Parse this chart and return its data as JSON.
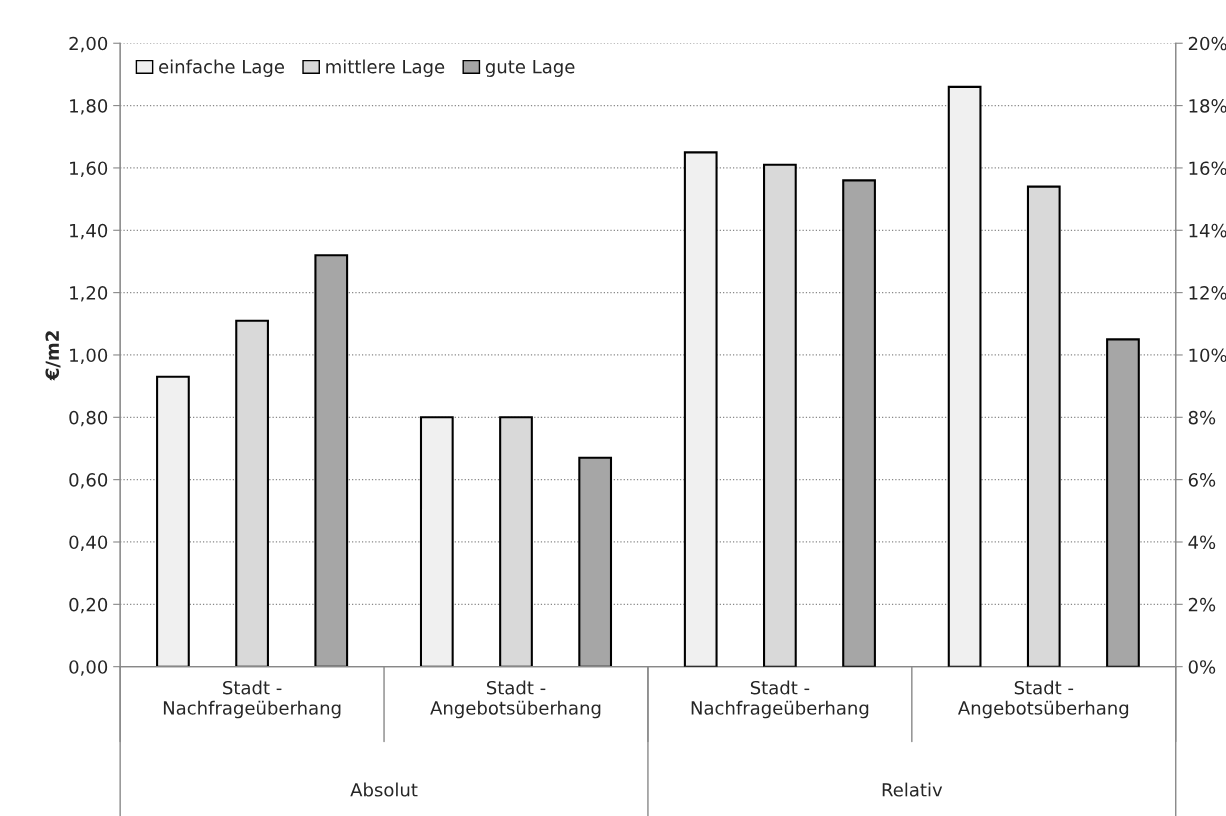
{
  "chart_data": {
    "type": "bar",
    "ylabel": "€/m2",
    "categories": [
      "Stadt -\nNachfrageüberhang",
      "Stadt -\nAngebotsüberhang",
      "Stadt -\nNachfrageüberhang",
      "Stadt -\nAngebotsüberhang"
    ],
    "series": [
      {
        "name": "einfache Lage",
        "color": "#f0f0f0",
        "values": [
          0.93,
          0.8,
          null,
          null
        ]
      },
      {
        "name": "mittlere Lage",
        "color": "#d9d9d9",
        "values": [
          1.11,
          0.8,
          null,
          null
        ]
      },
      {
        "name": "gute Lage",
        "color": "#a6a6a6",
        "values": [
          1.32,
          0.67,
          null,
          null
        ]
      },
      {
        "color": "#f0f0f0",
        "axis": "y2",
        "values": [
          null,
          null,
          16.5,
          18.6
        ]
      },
      {
        "color": "#d9d9d9",
        "axis": "y2",
        "values": [
          null,
          null,
          16.1,
          15.4
        ]
      },
      {
        "color": "#a6a6a6",
        "axis": "y2",
        "values": [
          null,
          null,
          15.6,
          10.5
        ]
      }
    ],
    "ylim": [
      0,
      2
    ],
    "yticks": [
      {
        "value": 0,
        "label": "0,00"
      },
      {
        "value": 0.2,
        "label": "0,20"
      },
      {
        "value": 0.4,
        "label": "0,40"
      },
      {
        "value": 0.6,
        "label": "0,60"
      },
      {
        "value": 0.8,
        "label": "0,80"
      },
      {
        "value": 1,
        "label": "1,00"
      },
      {
        "value": 1.2,
        "label": "1,20"
      },
      {
        "value": 1.4,
        "label": "1,40"
      },
      {
        "value": 1.6,
        "label": "1,60"
      },
      {
        "value": 1.8,
        "label": "1,80"
      },
      {
        "value": 2,
        "label": "2,00"
      }
    ],
    "y2lim": [
      0,
      20
    ],
    "y2ticks": [
      {
        "value": 0,
        "label": "0%"
      },
      {
        "value": 2,
        "label": "2%"
      },
      {
        "value": 4,
        "label": "4%"
      },
      {
        "value": 6,
        "label": "6%"
      },
      {
        "value": 8,
        "label": "8%"
      },
      {
        "value": 10,
        "label": "10%"
      },
      {
        "value": 12,
        "label": "12%"
      },
      {
        "value": 14,
        "label": "14%"
      },
      {
        "value": 16,
        "label": "16%"
      },
      {
        "value": 18,
        "label": "18%"
      },
      {
        "value": 20,
        "label": "20%"
      }
    ],
    "annotations": [
      "Absolut",
      "Relativ"
    ],
    "grid": "y",
    "legend": "top left"
  }
}
